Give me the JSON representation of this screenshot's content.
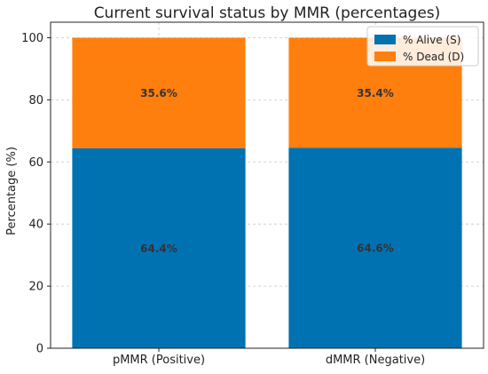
{
  "chart_data": {
    "type": "bar",
    "stacked": true,
    "title": "Current survival status by MMR (percentages)",
    "xlabel": "",
    "ylabel": "Percentage (%)",
    "categories": [
      "pMMR (Positive)",
      "dMMR (Negative)"
    ],
    "series": [
      {
        "name": "% Alive (S)",
        "values": [
          64.4,
          64.6
        ],
        "labels": [
          "64.4%",
          "64.6%"
        ],
        "color": "#0072b2"
      },
      {
        "name": "% Dead (D)",
        "values": [
          35.6,
          35.4
        ],
        "labels": [
          "35.6%",
          "35.4%"
        ],
        "color": "#ff7f0e"
      }
    ],
    "ylim": [
      0,
      105
    ],
    "yticks": [
      "0",
      "20",
      "40",
      "60",
      "80",
      "100"
    ],
    "grid": true,
    "legend_position": "top-right"
  }
}
